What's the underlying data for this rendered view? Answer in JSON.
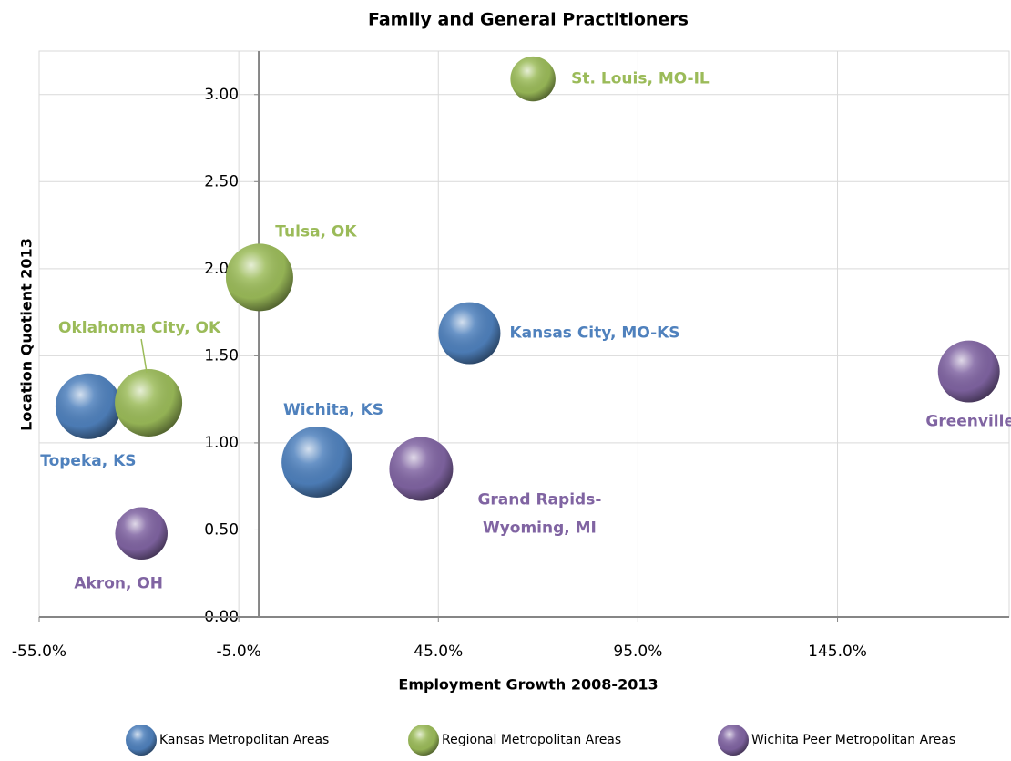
{
  "chart_data": {
    "type": "bubble",
    "title": "Family and General Practitioners",
    "x_label": "Employment Growth 2008-2013",
    "y_label": "Location Quotient 2013",
    "xlim": [
      -55,
      188
    ],
    "ylim": [
      0,
      3.25
    ],
    "xticks": [
      {
        "value": -55,
        "label": "-55.0%"
      },
      {
        "value": -5,
        "label": "-5.0%"
      },
      {
        "value": 45,
        "label": "45.0%"
      },
      {
        "value": 95,
        "label": "95.0%"
      },
      {
        "value": 145,
        "label": "145.0%"
      }
    ],
    "yticks": [
      {
        "value": 0,
        "label": "0.00"
      },
      {
        "value": 0.5,
        "label": "0.50"
      },
      {
        "value": 1,
        "label": "1.00"
      },
      {
        "value": 1.5,
        "label": "1.50"
      },
      {
        "value": 2,
        "label": "2.00"
      },
      {
        "value": 2.5,
        "label": "2.50"
      },
      {
        "value": 3,
        "label": "3.00"
      }
    ],
    "grid": true,
    "legend": "bottom",
    "series": [
      {
        "name": "Kansas Metropolitan Areas",
        "color": "#4f81bd",
        "labels": [
          "Topeka, KS",
          "Kansas City, MO-KS",
          "Wichita, KS"
        ],
        "x": [
          -42.7,
          52.8,
          14.6
        ],
        "y": [
          1.21,
          1.63,
          0.89
        ],
        "sizes": [
          36,
          32,
          42
        ]
      },
      {
        "name": "Regional Metropolitan Areas",
        "color": "#9bbb59",
        "labels": [
          "Oklahoma City, OK",
          "Tulsa, OK",
          "St. Louis, MO-IL"
        ],
        "x": [
          -27.6,
          0.2,
          68.7
        ],
        "y": [
          1.23,
          1.95,
          3.09
        ],
        "sizes": [
          38,
          38,
          17
        ]
      },
      {
        "name": "Wichita Peer Metropolitan Areas",
        "color": "#8064a2",
        "labels": [
          "Grand Rapids-Wyoming, MI",
          "Akron, OH",
          "Greenville, SC"
        ],
        "x": [
          40.7,
          -29.4,
          177.9
        ],
        "y": [
          0.85,
          0.48,
          1.41
        ],
        "sizes": [
          34,
          23,
          32
        ]
      }
    ]
  }
}
